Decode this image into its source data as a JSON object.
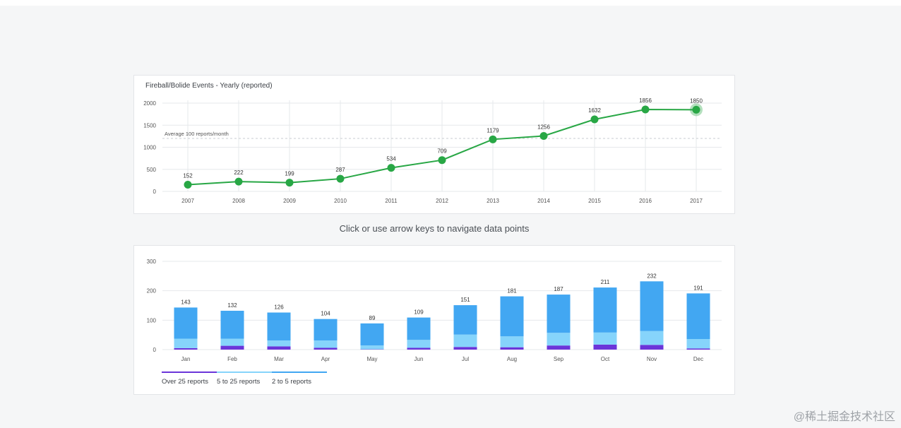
{
  "chart_data": [
    {
      "type": "line",
      "title": "Fireball/Bolide Events - Yearly (reported)",
      "x": [
        "2007",
        "2008",
        "2009",
        "2010",
        "2011",
        "2012",
        "2013",
        "2014",
        "2015",
        "2016",
        "2017"
      ],
      "values": [
        152,
        222,
        199,
        287,
        534,
        709,
        1179,
        1256,
        1632,
        1856,
        1850
      ],
      "y_ticks": [
        "0",
        "500",
        "1000",
        "1500",
        "2000"
      ],
      "ylim": [
        0,
        2000
      ],
      "reference_line": {
        "value": 1200,
        "label": "Average 100 reports/month"
      },
      "selected_index": 10,
      "color": "#28a745",
      "grid": true
    },
    {
      "type": "bar",
      "stacked": true,
      "categories": [
        "Jan",
        "Feb",
        "Mar",
        "Apr",
        "May",
        "Jun",
        "Jul",
        "Aug",
        "Sep",
        "Oct",
        "Nov",
        "Dec"
      ],
      "totals": [
        143,
        132,
        126,
        104,
        89,
        109,
        151,
        181,
        187,
        211,
        232,
        191
      ],
      "series": [
        {
          "name": "Over 25 reports",
          "color": "#6b35d9",
          "values": [
            5,
            13,
            11,
            6,
            1,
            6,
            9,
            8,
            14,
            17,
            16,
            4
          ]
        },
        {
          "name": "5 to 25 reports",
          "color": "#86d4fb",
          "values": [
            32,
            24,
            20,
            25,
            13,
            27,
            42,
            37,
            43,
            41,
            47,
            32
          ]
        },
        {
          "name": "2 to 5 reports",
          "color": "#42a7f2",
          "values": [
            106,
            95,
            95,
            73,
            75,
            76,
            100,
            136,
            130,
            153,
            169,
            155
          ]
        }
      ],
      "y_ticks": [
        "0",
        "100",
        "200",
        "300"
      ],
      "ylim": [
        0,
        300
      ],
      "legend": "bottom-left",
      "grid": true
    }
  ],
  "hint": "Click or use arrow keys to navigate data points",
  "watermark": "@稀土掘金技术社区"
}
